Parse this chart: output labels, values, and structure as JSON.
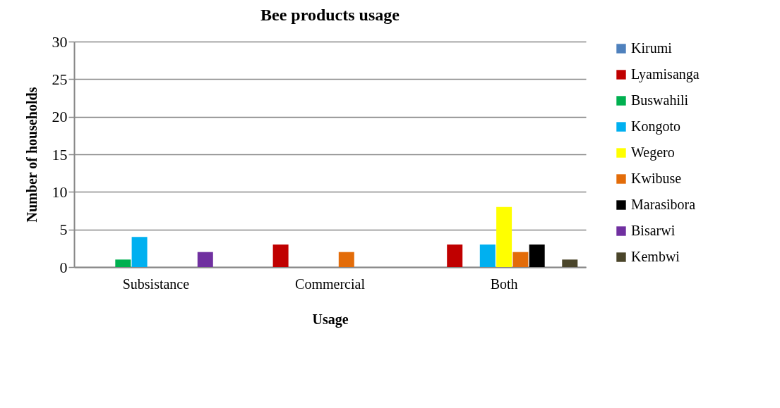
{
  "chart_data": {
    "type": "bar",
    "title": "Bee products usage",
    "xlabel": "Usage",
    "ylabel": "Number of households",
    "categories": [
      "Subsistance",
      "Commercial",
      "Both"
    ],
    "series": [
      {
        "name": "Kirumi",
        "color": "#4f81bd",
        "values": [
          0,
          0,
          0
        ]
      },
      {
        "name": "Lyamisanga",
        "color": "#c00000",
        "values": [
          0,
          3,
          3
        ]
      },
      {
        "name": "Buswahili",
        "color": "#00b050",
        "values": [
          1,
          0,
          0
        ]
      },
      {
        "name": "Kongoto",
        "color": "#00b0f0",
        "values": [
          4,
          0,
          3
        ]
      },
      {
        "name": "Wegero",
        "color": "#ffff00",
        "values": [
          0,
          0,
          8
        ]
      },
      {
        "name": "Kwibuse",
        "color": "#e36c09",
        "values": [
          0,
          2,
          2
        ]
      },
      {
        "name": "Marasibora",
        "color": "#000000",
        "values": [
          0,
          0,
          3
        ]
      },
      {
        "name": "Bisarwi",
        "color": "#7030a0",
        "values": [
          2,
          0,
          0
        ]
      },
      {
        "name": "Kembwi",
        "color": "#4a452a",
        "values": [
          0,
          0,
          1
        ]
      }
    ],
    "ylim": [
      0,
      30
    ],
    "yticks": [
      0,
      5,
      10,
      15,
      20,
      25,
      30
    ],
    "grid": "y",
    "legend": "right"
  }
}
